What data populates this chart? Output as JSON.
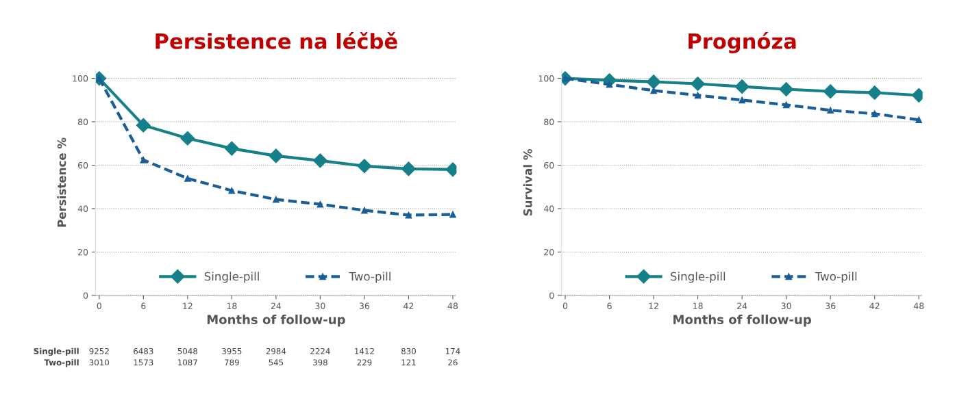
{
  "chart_data": [
    {
      "type": "line",
      "title": "Persistence na léčbě",
      "xlabel": "Months of follow-up",
      "ylabel": "Persistence %",
      "x": [
        0,
        6,
        12,
        18,
        24,
        30,
        36,
        42,
        48
      ],
      "xlim": [
        -0.5,
        48.5
      ],
      "xticks": [
        0,
        6,
        12,
        18,
        24,
        30,
        36,
        42,
        48
      ],
      "ylim": [
        0,
        104
      ],
      "yticks": [
        0,
        20,
        40,
        60,
        80,
        100
      ],
      "grid": "y",
      "legend": "bottom",
      "series": [
        {
          "name": "Single-pill",
          "color": "#16808a",
          "marker": "diamond",
          "line_style": "solid",
          "values": [
            100,
            78.4,
            72.4,
            67.7,
            64.3,
            62.1,
            59.6,
            58.3,
            58.0
          ]
        },
        {
          "name": "Two-pill",
          "color": "#1a5e98",
          "marker": "triangle",
          "line_style": "dashed",
          "values": [
            100,
            62.4,
            53.9,
            48.3,
            44.2,
            42.0,
            39.2,
            37.0,
            37.3
          ]
        }
      ],
      "annotations": [
        "Single-pill 9252 6483 5048 3955 2984 2224 1412 830 174",
        "Two-pill 3010 1573 1087 789 545 398 229 121 26"
      ]
    },
    {
      "type": "line",
      "title": "Prognóza",
      "xlabel": "Months of follow-up",
      "ylabel": "Survival %",
      "x": [
        0,
        6,
        12,
        18,
        24,
        30,
        36,
        42,
        48
      ],
      "xlim": [
        -0.5,
        48.5
      ],
      "xticks": [
        0,
        6,
        12,
        18,
        24,
        30,
        36,
        42,
        48
      ],
      "ylim": [
        0,
        104
      ],
      "yticks": [
        0,
        20,
        40,
        60,
        80,
        100
      ],
      "grid": "y",
      "legend": "bottom",
      "series": [
        {
          "name": "Single-pill",
          "color": "#16808a",
          "marker": "diamond",
          "line_style": "solid",
          "values": [
            100,
            99.1,
            98.4,
            97.5,
            96.2,
            95.0,
            94.0,
            93.4,
            92.2
          ]
        },
        {
          "name": "Two-pill",
          "color": "#1a5e98",
          "marker": "triangle",
          "line_style": "dashed",
          "values": [
            100,
            97.2,
            94.4,
            92.2,
            90.0,
            87.8,
            85.3,
            83.7,
            80.9
          ]
        }
      ]
    }
  ]
}
